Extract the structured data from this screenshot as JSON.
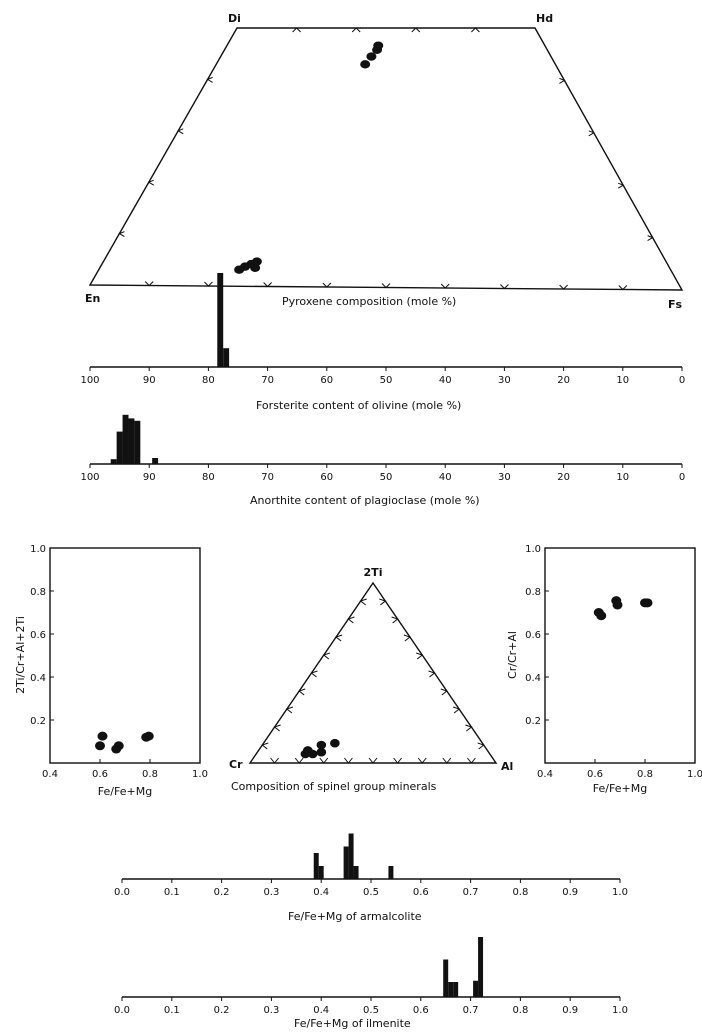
{
  "colors": {
    "ink": "#111111",
    "background": "#ffffff"
  },
  "chart_data": [
    {
      "id": "pyroxene",
      "type": "scatter",
      "xlabel": "Pyroxene composition (mole %)",
      "corners": {
        "top_left": "Di",
        "top_right": "Hd",
        "bottom_left": "En",
        "bottom_right": "Fs"
      },
      "points": [
        {
          "fs": 25,
          "wo": 43
        },
        {
          "fs": 25.3,
          "wo": 44.5
        },
        {
          "fs": 25.6,
          "wo": 45.8
        },
        {
          "fs": 25.4,
          "wo": 46.6
        },
        {
          "fs": 23.6,
          "wo": 3.2
        },
        {
          "fs": 24.3,
          "wo": 3.8
        },
        {
          "fs": 25.1,
          "wo": 4.3
        },
        {
          "fs": 25.8,
          "wo": 4.8
        },
        {
          "fs": 26.1,
          "wo": 3.6
        }
      ]
    },
    {
      "id": "olivine",
      "type": "bar",
      "xlabel": "Forsterite content of olivine (mole %)",
      "x_ticks": [
        "100",
        "90",
        "80",
        "70",
        "60",
        "50",
        "40",
        "30",
        "20",
        "10",
        "0"
      ],
      "xlim": [
        100,
        0
      ],
      "bins": [
        {
          "x": 78,
          "value": 10
        },
        {
          "x": 77,
          "value": 2
        }
      ]
    },
    {
      "id": "plagioclase",
      "type": "bar",
      "xlabel": "Anorthite content of plagioclase (mole %)",
      "x_ticks": [
        "100",
        "90",
        "80",
        "70",
        "60",
        "50",
        "40",
        "30",
        "20",
        "10",
        "0"
      ],
      "xlim": [
        100,
        0
      ],
      "bins": [
        {
          "x": 96,
          "value": 0.4
        },
        {
          "x": 95,
          "value": 2.7
        },
        {
          "x": 94,
          "value": 4.1
        },
        {
          "x": 93,
          "value": 3.8
        },
        {
          "x": 92,
          "value": 3.6
        },
        {
          "x": 89,
          "value": 0.5
        }
      ]
    },
    {
      "id": "spinel_ti",
      "type": "scatter",
      "ylabel": "2Ti/Cr+Al+2Ti",
      "xlabel": "Fe/Fe+Mg",
      "x_ticks": [
        "0.4",
        "0.6",
        "0.8",
        "1.0"
      ],
      "y_ticks": [
        "0.2",
        "0.4",
        "0.6",
        "0.8",
        "1.0"
      ],
      "xlim": [
        0.4,
        1.0
      ],
      "ylim": [
        0.0,
        1.0
      ],
      "points": [
        {
          "x": 0.61,
          "y": 0.125
        },
        {
          "x": 0.6,
          "y": 0.08
        },
        {
          "x": 0.665,
          "y": 0.065
        },
        {
          "x": 0.675,
          "y": 0.08
        },
        {
          "x": 0.785,
          "y": 0.12
        },
        {
          "x": 0.795,
          "y": 0.125
        }
      ]
    },
    {
      "id": "spinel_ternary",
      "type": "scatter",
      "xlabel": "Composition of spinel group minerals",
      "corners": {
        "top": "2Ti",
        "left": "Cr",
        "right": "Al"
      },
      "points": [
        {
          "ti": 0.05,
          "al": 0.2
        },
        {
          "ti": 0.05,
          "al": 0.23
        },
        {
          "ti": 0.06,
          "al": 0.26
        },
        {
          "ti": 0.1,
          "al": 0.24
        },
        {
          "ti": 0.11,
          "al": 0.29
        },
        {
          "ti": 0.07,
          "al": 0.2
        }
      ]
    },
    {
      "id": "spinel_cr",
      "type": "scatter",
      "ylabel": "Cr/Cr+Al",
      "xlabel": "Fe/Fe+Mg",
      "x_ticks": [
        "0.4",
        "0.6",
        "0.8",
        "1.0"
      ],
      "y_ticks": [
        "0.2",
        "0.4",
        "0.6",
        "0.8",
        "1.0"
      ],
      "xlim": [
        0.4,
        1.0
      ],
      "ylim": [
        0.0,
        1.0
      ],
      "points": [
        {
          "x": 0.615,
          "y": 0.7
        },
        {
          "x": 0.625,
          "y": 0.685
        },
        {
          "x": 0.685,
          "y": 0.755
        },
        {
          "x": 0.69,
          "y": 0.735
        },
        {
          "x": 0.8,
          "y": 0.745
        },
        {
          "x": 0.81,
          "y": 0.745
        }
      ]
    },
    {
      "id": "armalcolite",
      "type": "bar",
      "xlabel": "Fe/Fe+Mg of armalcolite",
      "x_ticks": [
        "0.0",
        "0.1",
        "0.2",
        "0.3",
        "0.4",
        "0.5",
        "0.6",
        "0.7",
        "0.8",
        "0.9",
        "1.0"
      ],
      "xlim": [
        0.0,
        1.0
      ],
      "bins": [
        {
          "x": 0.39,
          "value": 4
        },
        {
          "x": 0.4,
          "value": 2
        },
        {
          "x": 0.45,
          "value": 5
        },
        {
          "x": 0.46,
          "value": 7
        },
        {
          "x": 0.47,
          "value": 2
        },
        {
          "x": 0.54,
          "value": 2
        }
      ]
    },
    {
      "id": "ilmenite",
      "type": "bar",
      "xlabel": "Fe/Fe+Mg of ilmenite",
      "x_ticks": [
        "0.0",
        "0.1",
        "0.2",
        "0.3",
        "0.4",
        "0.5",
        "0.6",
        "0.7",
        "0.8",
        "0.9",
        "1.0"
      ],
      "xlim": [
        0.0,
        1.0
      ],
      "bins": [
        {
          "x": 0.65,
          "value": 3
        },
        {
          "x": 0.66,
          "value": 1.2
        },
        {
          "x": 0.67,
          "value": 1.2
        },
        {
          "x": 0.71,
          "value": 1.3
        },
        {
          "x": 0.72,
          "value": 4.8
        }
      ]
    }
  ]
}
